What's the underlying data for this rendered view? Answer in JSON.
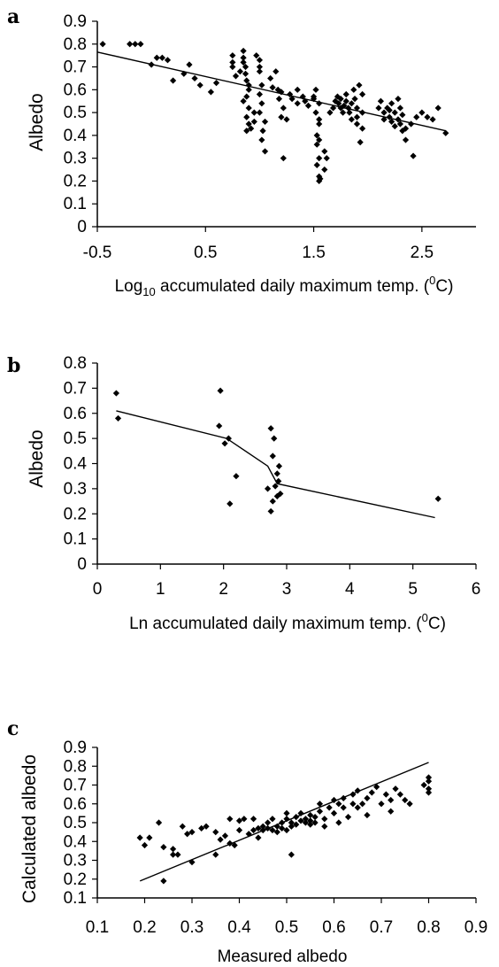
{
  "chart_data": [
    {
      "panel": "a",
      "type": "scatter",
      "ylabel": "Albedo",
      "xlabel_parts": [
        "Log",
        "10",
        " accumulated daily maximum temp. (",
        "0",
        "C)"
      ],
      "xlim": [
        -0.5,
        3.0
      ],
      "ylim": [
        0,
        0.9
      ],
      "xticks": [
        -0.5,
        0.5,
        1.5,
        2.5
      ],
      "xtick_labels": [
        "-0.5",
        "0.5",
        "1.5",
        "2.5"
      ],
      "yticks": [
        0,
        0.1,
        0.2,
        0.3,
        0.4,
        0.5,
        0.6,
        0.7,
        0.8,
        0.9
      ],
      "ytick_labels": [
        "0",
        "0.1",
        "0.2",
        "0.3",
        "0.4",
        "0.5",
        "0.6",
        "0.7",
        "0.8",
        "0.9"
      ],
      "points": [
        [
          -0.45,
          0.8
        ],
        [
          -0.2,
          0.8
        ],
        [
          -0.15,
          0.8
        ],
        [
          -0.1,
          0.8
        ],
        [
          0.0,
          0.71
        ],
        [
          0.05,
          0.74
        ],
        [
          0.1,
          0.74
        ],
        [
          0.15,
          0.73
        ],
        [
          0.2,
          0.64
        ],
        [
          0.3,
          0.67
        ],
        [
          0.35,
          0.71
        ],
        [
          0.4,
          0.65
        ],
        [
          0.45,
          0.62
        ],
        [
          0.55,
          0.59
        ],
        [
          0.6,
          0.63
        ],
        [
          0.75,
          0.75
        ],
        [
          0.75,
          0.72
        ],
        [
          0.75,
          0.7
        ],
        [
          0.78,
          0.66
        ],
        [
          0.82,
          0.68
        ],
        [
          0.85,
          0.77
        ],
        [
          0.85,
          0.74
        ],
        [
          0.85,
          0.72
        ],
        [
          0.87,
          0.7
        ],
        [
          0.87,
          0.67
        ],
        [
          0.88,
          0.64
        ],
        [
          0.9,
          0.62
        ],
        [
          0.9,
          0.6
        ],
        [
          0.88,
          0.57
        ],
        [
          0.85,
          0.55
        ],
        [
          0.9,
          0.52
        ],
        [
          0.88,
          0.48
        ],
        [
          0.9,
          0.45
        ],
        [
          0.88,
          0.42
        ],
        [
          0.92,
          0.43
        ],
        [
          0.95,
          0.5
        ],
        [
          0.95,
          0.46
        ],
        [
          0.97,
          0.75
        ],
        [
          1.0,
          0.73
        ],
        [
          1.0,
          0.7
        ],
        [
          1.0,
          0.68
        ],
        [
          1.02,
          0.62
        ],
        [
          1.0,
          0.58
        ],
        [
          1.02,
          0.54
        ],
        [
          1.0,
          0.5
        ],
        [
          1.05,
          0.46
        ],
        [
          1.03,
          0.42
        ],
        [
          1.02,
          0.38
        ],
        [
          1.05,
          0.33
        ],
        [
          1.1,
          0.65
        ],
        [
          1.12,
          0.61
        ],
        [
          1.15,
          0.68
        ],
        [
          1.17,
          0.6
        ],
        [
          1.2,
          0.59
        ],
        [
          1.18,
          0.56
        ],
        [
          1.22,
          0.52
        ],
        [
          1.2,
          0.48
        ],
        [
          1.25,
          0.47
        ],
        [
          1.22,
          0.3
        ],
        [
          1.28,
          0.58
        ],
        [
          1.3,
          0.56
        ],
        [
          1.35,
          0.6
        ],
        [
          1.35,
          0.54
        ],
        [
          1.4,
          0.57
        ],
        [
          1.42,
          0.55
        ],
        [
          1.45,
          0.53
        ],
        [
          1.5,
          0.57
        ],
        [
          1.5,
          0.56
        ],
        [
          1.52,
          0.6
        ],
        [
          1.55,
          0.54
        ],
        [
          1.52,
          0.5
        ],
        [
          1.55,
          0.47
        ],
        [
          1.55,
          0.45
        ],
        [
          1.53,
          0.4
        ],
        [
          1.55,
          0.38
        ],
        [
          1.53,
          0.36
        ],
        [
          1.55,
          0.3
        ],
        [
          1.53,
          0.27
        ],
        [
          1.55,
          0.22
        ],
        [
          1.56,
          0.21
        ],
        [
          1.55,
          0.2
        ],
        [
          1.6,
          0.33
        ],
        [
          1.62,
          0.3
        ],
        [
          1.6,
          0.25
        ],
        [
          1.65,
          0.5
        ],
        [
          1.68,
          0.52
        ],
        [
          1.7,
          0.55
        ],
        [
          1.72,
          0.57
        ],
        [
          1.73,
          0.54
        ],
        [
          1.75,
          0.56
        ],
        [
          1.75,
          0.52
        ],
        [
          1.77,
          0.5
        ],
        [
          1.78,
          0.53
        ],
        [
          1.8,
          0.55
        ],
        [
          1.8,
          0.58
        ],
        [
          1.82,
          0.52
        ],
        [
          1.83,
          0.5
        ],
        [
          1.85,
          0.54
        ],
        [
          1.85,
          0.47
        ],
        [
          1.87,
          0.6
        ],
        [
          1.88,
          0.56
        ],
        [
          1.9,
          0.52
        ],
        [
          1.9,
          0.48
        ],
        [
          1.9,
          0.45
        ],
        [
          1.92,
          0.62
        ],
        [
          1.95,
          0.58
        ],
        [
          1.95,
          0.5
        ],
        [
          1.95,
          0.43
        ],
        [
          1.93,
          0.37
        ],
        [
          2.1,
          0.52
        ],
        [
          2.12,
          0.55
        ],
        [
          2.15,
          0.5
        ],
        [
          2.15,
          0.47
        ],
        [
          2.18,
          0.52
        ],
        [
          2.2,
          0.51
        ],
        [
          2.2,
          0.48
        ],
        [
          2.22,
          0.54
        ],
        [
          2.22,
          0.46
        ],
        [
          2.25,
          0.5
        ],
        [
          2.25,
          0.44
        ],
        [
          2.28,
          0.56
        ],
        [
          2.28,
          0.47
        ],
        [
          2.3,
          0.52
        ],
        [
          2.3,
          0.45
        ],
        [
          2.32,
          0.49
        ],
        [
          2.32,
          0.42
        ],
        [
          2.35,
          0.43
        ],
        [
          2.35,
          0.38
        ],
        [
          2.4,
          0.45
        ],
        [
          2.42,
          0.31
        ],
        [
          2.45,
          0.48
        ],
        [
          2.5,
          0.5
        ],
        [
          2.55,
          0.48
        ],
        [
          2.6,
          0.47
        ],
        [
          2.65,
          0.52
        ],
        [
          2.72,
          0.41
        ]
      ],
      "fit_line": [
        [
          -0.5,
          0.765
        ],
        [
          2.72,
          0.42
        ]
      ]
    },
    {
      "panel": "b",
      "type": "scatter",
      "ylabel": "Albedo",
      "xlabel_parts": [
        "Ln accumulated daily maximum temp. (",
        "0",
        "C)"
      ],
      "xlim": [
        0,
        6
      ],
      "ylim": [
        0,
        0.8
      ],
      "xticks": [
        0,
        1,
        2,
        3,
        4,
        5,
        6
      ],
      "xtick_labels": [
        "0",
        "1",
        "2",
        "3",
        "4",
        "5",
        "6"
      ],
      "yticks": [
        0,
        0.1,
        0.2,
        0.3,
        0.4,
        0.5,
        0.6,
        0.7,
        0.8
      ],
      "ytick_labels": [
        "0",
        "0.1",
        "0.2",
        "0.3",
        "0.4",
        "0.5",
        "0.6",
        "0.7",
        "0.8"
      ],
      "points": [
        [
          0.3,
          0.68
        ],
        [
          0.33,
          0.58
        ],
        [
          1.95,
          0.69
        ],
        [
          1.93,
          0.55
        ],
        [
          2.02,
          0.48
        ],
        [
          2.08,
          0.5
        ],
        [
          2.2,
          0.35
        ],
        [
          2.1,
          0.24
        ],
        [
          2.7,
          0.3
        ],
        [
          2.75,
          0.54
        ],
        [
          2.8,
          0.5
        ],
        [
          2.78,
          0.43
        ],
        [
          2.85,
          0.36
        ],
        [
          2.88,
          0.39
        ],
        [
          2.75,
          0.21
        ],
        [
          2.78,
          0.25
        ],
        [
          2.85,
          0.27
        ],
        [
          2.9,
          0.28
        ],
        [
          2.82,
          0.31
        ],
        [
          2.87,
          0.33
        ],
        [
          5.4,
          0.26
        ]
      ],
      "fit_line": [
        [
          0.3,
          0.61
        ],
        [
          2.05,
          0.5
        ],
        [
          2.7,
          0.39
        ],
        [
          2.85,
          0.32
        ],
        [
          5.35,
          0.185
        ]
      ]
    },
    {
      "panel": "c",
      "type": "scatter",
      "ylabel": "Calculated albedo",
      "xlabel": "Measured albedo",
      "xlim": [
        0.1,
        0.9
      ],
      "ylim": [
        0.1,
        0.9
      ],
      "xticks": [
        0.1,
        0.2,
        0.3,
        0.4,
        0.5,
        0.6,
        0.7,
        0.8,
        0.9
      ],
      "xtick_labels": [
        "0.1",
        "0.2",
        "0.3",
        "0.4",
        "0.5",
        "0.6",
        "0.7",
        "0.8",
        "0.9"
      ],
      "yticks": [
        0.1,
        0.2,
        0.3,
        0.4,
        0.5,
        0.6,
        0.7,
        0.8,
        0.9
      ],
      "ytick_labels": [
        "0.1",
        "0.2",
        "0.3",
        "0.4",
        "0.5",
        "0.6",
        "0.7",
        "0.8",
        "0.9"
      ],
      "points": [
        [
          0.19,
          0.42
        ],
        [
          0.2,
          0.38
        ],
        [
          0.21,
          0.42
        ],
        [
          0.23,
          0.5
        ],
        [
          0.24,
          0.37
        ],
        [
          0.24,
          0.19
        ],
        [
          0.26,
          0.36
        ],
        [
          0.26,
          0.33
        ],
        [
          0.27,
          0.33
        ],
        [
          0.28,
          0.48
        ],
        [
          0.29,
          0.44
        ],
        [
          0.3,
          0.29
        ],
        [
          0.3,
          0.45
        ],
        [
          0.32,
          0.47
        ],
        [
          0.33,
          0.48
        ],
        [
          0.35,
          0.33
        ],
        [
          0.35,
          0.45
        ],
        [
          0.36,
          0.41
        ],
        [
          0.37,
          0.43
        ],
        [
          0.38,
          0.52
        ],
        [
          0.38,
          0.39
        ],
        [
          0.39,
          0.38
        ],
        [
          0.4,
          0.46
        ],
        [
          0.4,
          0.51
        ],
        [
          0.41,
          0.52
        ],
        [
          0.42,
          0.44
        ],
        [
          0.43,
          0.46
        ],
        [
          0.43,
          0.52
        ],
        [
          0.44,
          0.47
        ],
        [
          0.44,
          0.42
        ],
        [
          0.45,
          0.48
        ],
        [
          0.45,
          0.46
        ],
        [
          0.46,
          0.5
        ],
        [
          0.46,
          0.47
        ],
        [
          0.47,
          0.46
        ],
        [
          0.47,
          0.52
        ],
        [
          0.48,
          0.48
        ],
        [
          0.48,
          0.45
        ],
        [
          0.49,
          0.5
        ],
        [
          0.49,
          0.47
        ],
        [
          0.5,
          0.46
        ],
        [
          0.5,
          0.52
        ],
        [
          0.5,
          0.55
        ],
        [
          0.51,
          0.48
        ],
        [
          0.51,
          0.5
        ],
        [
          0.51,
          0.33
        ],
        [
          0.52,
          0.53
        ],
        [
          0.52,
          0.49
        ],
        [
          0.53,
          0.51
        ],
        [
          0.53,
          0.55
        ],
        [
          0.54,
          0.5
        ],
        [
          0.54,
          0.52
        ],
        [
          0.55,
          0.54
        ],
        [
          0.55,
          0.49
        ],
        [
          0.55,
          0.51
        ],
        [
          0.56,
          0.53
        ],
        [
          0.56,
          0.5
        ],
        [
          0.57,
          0.56
        ],
        [
          0.57,
          0.6
        ],
        [
          0.58,
          0.48
        ],
        [
          0.58,
          0.52
        ],
        [
          0.59,
          0.58
        ],
        [
          0.6,
          0.55
        ],
        [
          0.6,
          0.62
        ],
        [
          0.61,
          0.6
        ],
        [
          0.61,
          0.5
        ],
        [
          0.62,
          0.58
        ],
        [
          0.62,
          0.63
        ],
        [
          0.63,
          0.53
        ],
        [
          0.64,
          0.6
        ],
        [
          0.64,
          0.65
        ],
        [
          0.65,
          0.58
        ],
        [
          0.65,
          0.67
        ],
        [
          0.66,
          0.6
        ],
        [
          0.67,
          0.63
        ],
        [
          0.67,
          0.54
        ],
        [
          0.68,
          0.66
        ],
        [
          0.69,
          0.69
        ],
        [
          0.7,
          0.6
        ],
        [
          0.71,
          0.65
        ],
        [
          0.72,
          0.62
        ],
        [
          0.72,
          0.56
        ],
        [
          0.73,
          0.68
        ],
        [
          0.74,
          0.65
        ],
        [
          0.75,
          0.62
        ],
        [
          0.76,
          0.6
        ],
        [
          0.79,
          0.7
        ],
        [
          0.8,
          0.72
        ],
        [
          0.8,
          0.74
        ],
        [
          0.8,
          0.68
        ],
        [
          0.8,
          0.66
        ]
      ],
      "fit_line": [
        [
          0.19,
          0.19
        ],
        [
          0.8,
          0.82
        ]
      ]
    }
  ]
}
